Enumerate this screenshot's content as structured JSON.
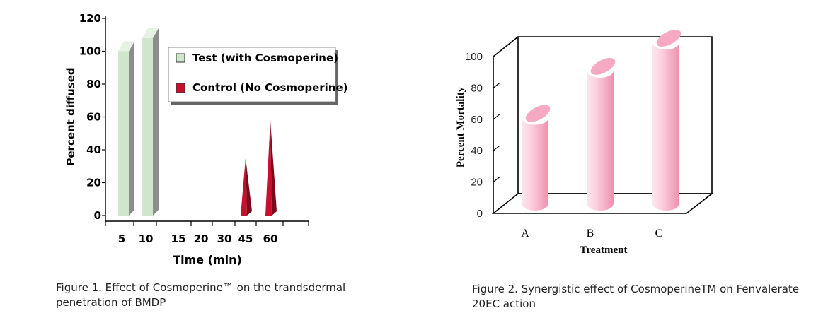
{
  "chart_data": [
    {
      "type": "bar",
      "title": "",
      "xlabel": "Time (min)",
      "ylabel": "Percent diffused",
      "ylim": [
        0,
        120
      ],
      "yticks": [
        "0",
        "20",
        "40",
        "60",
        "80",
        "100",
        "120"
      ],
      "categories": [
        "5",
        "10",
        "15",
        "20",
        "30",
        "45",
        "60"
      ],
      "series": [
        {
          "name": "Test (with Cosmoperine)",
          "values": [
            100,
            108,
            0,
            0,
            0,
            0,
            0
          ],
          "color": "#cfe6cc"
        },
        {
          "name": "Control (No Cosmoperine)",
          "values": [
            0,
            0,
            0,
            0,
            0,
            35,
            58
          ],
          "color": "#c8102e"
        }
      ],
      "legend": "top-right",
      "caption": "Figure 1. Effect of Cosmoperine™ on the trandsdermal penetration of BMDP"
    },
    {
      "type": "bar",
      "title": "",
      "xlabel": "Treatment",
      "ylabel": "Percent Mortality",
      "ylim": [
        0,
        100
      ],
      "yticks": [
        "0",
        "20",
        "40",
        "60",
        "80",
        "100"
      ],
      "categories": [
        "A",
        "B",
        "C"
      ],
      "values": [
        52,
        82,
        100
      ],
      "color": "#f4a6c0",
      "caption": "Figure 2. Synergistic effect of CosmoperineTM on Fenvalerate 20EC action"
    }
  ],
  "captions": {
    "fig1_line1": "Figure 1. Effect of Cosmoperine™ on the trandsdermal",
    "fig1_line2": "penetration of BMDP",
    "fig2_line1": "Figure 2. Synergistic effect of CosmoperineTM on Fenvalerate",
    "fig2_line2": "20EC action"
  }
}
